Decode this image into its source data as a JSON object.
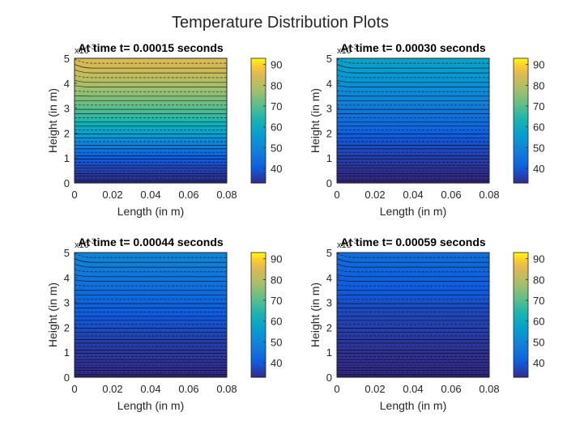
{
  "figure": {
    "title": "Temperature Distribution Plots"
  },
  "colorbar": {
    "ticks": [
      40,
      50,
      60,
      70,
      80,
      90
    ],
    "range": [
      33,
      93
    ],
    "colormap": "parula"
  },
  "colors": {
    "contour_line": "#000000",
    "axes": "#262626",
    "background": "#ffffff"
  },
  "chart_data": [
    {
      "type": "heatmap",
      "subtype": "filled-contour",
      "title": "At time t= 0.00015 seconds",
      "xlabel": "Length (in m)",
      "ylabel": "Height (in m)",
      "xlim": [
        0,
        0.08
      ],
      "ylim": [
        0,
        5
      ],
      "xticks": [
        "0",
        "0.02",
        "0.04",
        "0.06",
        "0.08"
      ],
      "yticks": [
        "0",
        "1",
        "2",
        "3",
        "4",
        "5"
      ],
      "y_exponent": "x10^-3",
      "temperature_profile": {
        "height": [
          0,
          0.5,
          1.0,
          1.5,
          2.0,
          2.5,
          3.0,
          3.5,
          4.0,
          4.5,
          5.0
        ],
        "temperature": [
          34,
          36,
          40,
          48,
          57,
          64,
          70,
          75,
          79,
          83,
          85
        ]
      }
    },
    {
      "type": "heatmap",
      "subtype": "filled-contour",
      "title": "At time t= 0.00030 seconds",
      "xlabel": "Length (in m)",
      "ylabel": "Height (in m)",
      "xlim": [
        0,
        0.08
      ],
      "ylim": [
        0,
        5
      ],
      "xticks": [
        "0",
        "0.02",
        "0.04",
        "0.06",
        "0.08"
      ],
      "yticks": [
        "0",
        "1",
        "2",
        "3",
        "4",
        "5"
      ],
      "y_exponent": "x10^-3",
      "temperature_profile": {
        "height": [
          0,
          0.5,
          1.0,
          1.5,
          2.0,
          2.5,
          3.0,
          3.5,
          4.0,
          4.5,
          5.0
        ],
        "temperature": [
          33,
          34,
          36,
          38,
          41,
          44,
          47,
          50,
          53,
          56,
          58
        ]
      }
    },
    {
      "type": "heatmap",
      "subtype": "filled-contour",
      "title": "At time t= 0.00044 seconds",
      "xlabel": "Length (in m)",
      "ylabel": "Height (in m)",
      "xlim": [
        0,
        0.08
      ],
      "ylim": [
        0,
        5
      ],
      "xticks": [
        "0",
        "0.02",
        "0.04",
        "0.06",
        "0.08"
      ],
      "yticks": [
        "0",
        "1",
        "2",
        "3",
        "4",
        "5"
      ],
      "y_exponent": "x10^-3",
      "temperature_profile": {
        "height": [
          0,
          0.5,
          1.0,
          1.5,
          2.0,
          2.5,
          3.0,
          3.5,
          4.0,
          4.5,
          5.0
        ],
        "temperature": [
          33,
          34,
          35,
          36,
          38,
          40,
          42,
          44,
          46,
          48,
          50
        ]
      }
    },
    {
      "type": "heatmap",
      "subtype": "filled-contour",
      "title": "At time t= 0.00059 seconds",
      "xlabel": "Length (in m)",
      "ylabel": "Height (in m)",
      "xlim": [
        0,
        0.08
      ],
      "ylim": [
        0,
        5
      ],
      "xticks": [
        "0",
        "0.02",
        "0.04",
        "0.06",
        "0.08"
      ],
      "yticks": [
        "0",
        "1",
        "2",
        "3",
        "4",
        "5"
      ],
      "y_exponent": "x10^-3",
      "temperature_profile": {
        "height": [
          0,
          0.5,
          1.0,
          1.5,
          2.0,
          2.5,
          3.0,
          3.5,
          4.0,
          4.5,
          5.0
        ],
        "temperature": [
          33,
          33.5,
          34,
          35,
          36,
          37,
          38.5,
          40,
          41.5,
          43,
          44.5
        ]
      }
    }
  ]
}
